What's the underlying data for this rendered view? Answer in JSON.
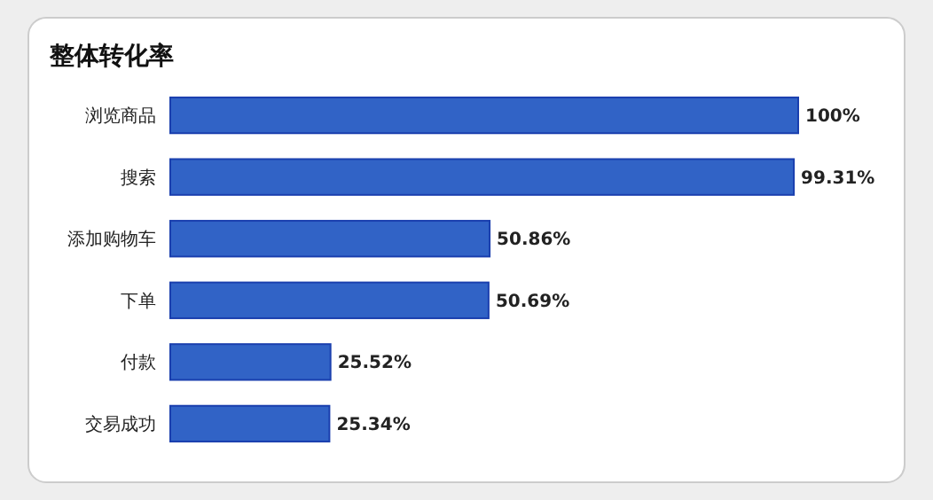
{
  "chart_data": {
    "type": "bar",
    "orientation": "horizontal",
    "title": "整体转化率",
    "categories": [
      "浏览商品",
      "搜索",
      "添加购物车",
      "下单",
      "付款",
      "交易成功"
    ],
    "values": [
      100,
      99.31,
      50.86,
      50.69,
      25.52,
      25.34
    ],
    "value_labels": [
      "100%",
      "99.31%",
      "50.86%",
      "50.69%",
      "25.52%",
      "25.34%"
    ],
    "color": "#3163c6"
  }
}
